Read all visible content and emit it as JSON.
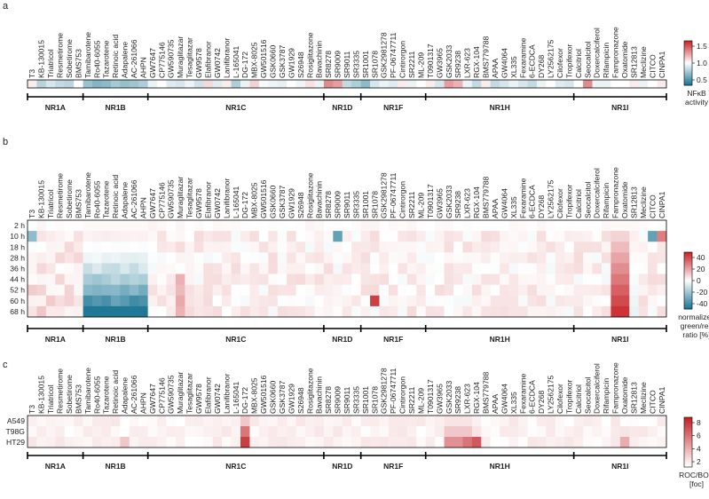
{
  "chart_data": [
    {
      "type": "heatmap",
      "panel_label": "a",
      "title": "",
      "compounds": [
        "T3",
        "KB-130015",
        "Triatricol",
        "Resmetirome",
        "Sobetirome",
        "BMS753",
        "Tamibarotene",
        "Ro40-6055",
        "Tazarotene",
        "Retinoic acid",
        "Adapalene",
        "AC-261066",
        "AHPN",
        "GW7647",
        "CP775146",
        "GW590735",
        "Muraglitazar",
        "Tesaglitazar",
        "GW9578",
        "Elafibranor",
        "GW0742",
        "Lanifibranor",
        "L-165041",
        "DG-172",
        "MBX-8025",
        "GW501516",
        "GSK0660",
        "GSK3787",
        "GW1929",
        "S26948",
        "Rosiglitazone",
        "Bavachinin",
        "SR8278",
        "SR9009",
        "SR9011",
        "SR3335",
        "SR1001",
        "SR1078",
        "GSK2981278",
        "PF-06747711",
        "Cintirorgon",
        "SR2211",
        "ML-209",
        "T0901317",
        "GW3965",
        "GSK2033",
        "SR9238",
        "LXR-623",
        "RGX-104",
        "BMS779788",
        "APAA",
        "GW4064",
        "XL335",
        "Fexaramine",
        "6-ECDCA",
        "DY268",
        "LY2562175",
        "Cilofexor",
        "Tropifexor",
        "Calcitriol",
        "Seocalcitol",
        "Doxercalciferol",
        "Rifampicin",
        "Fampronazone",
        "Oxatomide",
        "SR12813",
        "Meclizine",
        "CITCO",
        "CINPA1"
      ],
      "subfamilies": [
        {
          "name": "NR1A",
          "start": 0,
          "end": 5
        },
        {
          "name": "NR1B",
          "start": 6,
          "end": 12
        },
        {
          "name": "NR1C",
          "start": 13,
          "end": 31
        },
        {
          "name": "NR1D",
          "start": 32,
          "end": 35
        },
        {
          "name": "NR1F",
          "start": 36,
          "end": 42
        },
        {
          "name": "NR1H",
          "start": 43,
          "end": 58
        },
        {
          "name": "NR1I",
          "start": 59,
          "end": 68
        }
      ],
      "rows": [
        ""
      ],
      "values": [
        [
          1.05,
          0.82,
          0.9,
          0.85,
          0.83,
          1.0,
          0.75,
          0.7,
          0.72,
          0.78,
          0.74,
          0.76,
          0.8,
          0.95,
          1.0,
          0.92,
          0.9,
          0.96,
          0.88,
          1.1,
          0.92,
          1.05,
          0.8,
          0.95,
          1.12,
          0.98,
          0.96,
          0.94,
          1.0,
          0.96,
          1.08,
          0.95,
          1.3,
          1.25,
          0.85,
          0.8,
          0.72,
          0.9,
          0.95,
          0.92,
          1.05,
          0.95,
          1.0,
          1.05,
          0.9,
          1.25,
          1.2,
          0.95,
          0.85,
          1.05,
          0.85,
          0.9,
          0.95,
          0.9,
          0.85,
          0.95,
          1.0,
          0.92,
          0.9,
          1.0,
          1.3,
          0.95,
          0.95,
          1.0,
          1.0,
          1.05,
          0.95,
          1.0,
          1.05
        ]
      ],
      "colorbar": {
        "label": "NFκB\nactivity",
        "ticks": [
          "1.5",
          "1.0",
          "0.5"
        ],
        "range": [
          0.5,
          1.7
        ]
      }
    },
    {
      "type": "heatmap",
      "panel_label": "b",
      "title": "",
      "rows": [
        "2 h",
        "10 h",
        "18 h",
        "28 h",
        "36 h",
        "44 h",
        "52 h",
        "60 h",
        "68 h"
      ],
      "colorbar": {
        "label": "normalized\ngreen/red\nratio [%]",
        "ticks": [
          "40",
          "20",
          "0",
          "-20",
          "-40"
        ],
        "range": [
          -45,
          45
        ]
      },
      "pattern": "time course: near zero at 2 h, NR1B compounds strongly negative (blue) at 52-68 h, Fampronazone region strongly positive (red) at late timepoints"
    },
    {
      "type": "heatmap",
      "panel_label": "c",
      "title": "",
      "rows": [
        "A549",
        "T98G",
        "HT29"
      ],
      "colorbar": {
        "label": "ROC/BOC\n[foc]",
        "ticks": [
          "8",
          "6",
          "4",
          "2"
        ],
        "range": [
          1,
          9
        ]
      },
      "highlights": [
        {
          "compound": "DG-172",
          "values": [
            3,
            6,
            8
          ]
        },
        {
          "compound": "LXR-623",
          "values": [
            2,
            3,
            6
          ]
        },
        {
          "compound": "RGX-104",
          "values": [
            1.5,
            2,
            7
          ]
        },
        {
          "compound": "GSK2033",
          "values": [
            2,
            3,
            5
          ]
        },
        {
          "compound": "SR9238",
          "values": [
            2,
            3,
            5
          ]
        },
        {
          "compound": "Adapalene",
          "values": [
            1,
            1,
            3
          ]
        },
        {
          "compound": "Oxatomide",
          "values": [
            1,
            2,
            4
          ]
        }
      ]
    }
  ]
}
